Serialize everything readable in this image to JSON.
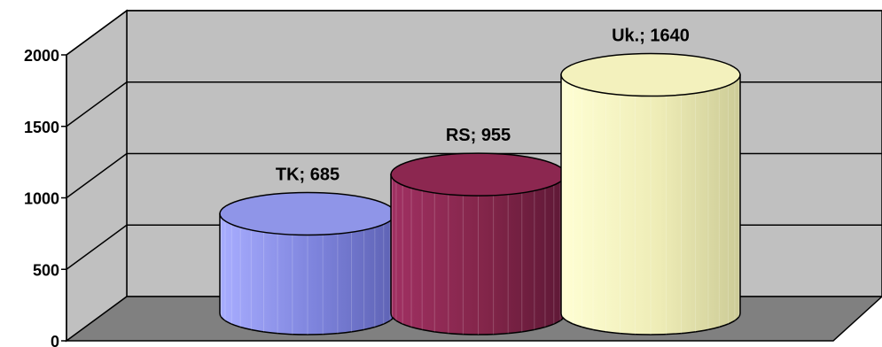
{
  "chart_data": {
    "type": "bar",
    "categories": [
      "TK",
      "RS",
      "Uk."
    ],
    "values": [
      685,
      955,
      1640
    ],
    "data_labels": [
      "TK; 685",
      "RS; 955",
      "Uk.; 1640"
    ],
    "ylim": [
      0,
      2000
    ],
    "yticks": [
      "0",
      "500",
      "1000",
      "1500",
      "2000"
    ],
    "colors": {
      "TK": "#8f95e8",
      "RS": "#8c2750",
      "Uk.": "#f3f1bd",
      "wall": "#c0c0c0",
      "floor": "#808080"
    },
    "grid": true,
    "legend": "none"
  }
}
